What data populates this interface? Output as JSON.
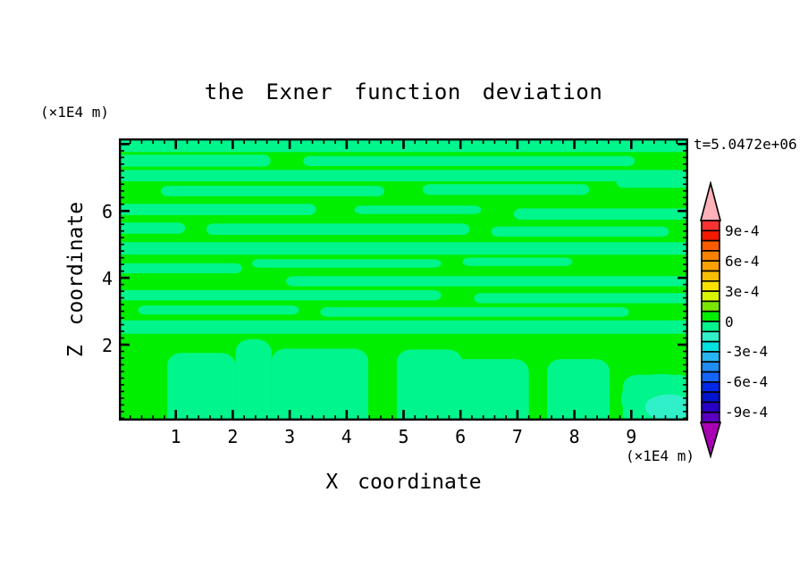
{
  "chart_data": {
    "type": "filled_contour",
    "title": "the Exner function deviation",
    "time_label": "t=5.0472e+06",
    "xlabel": "X coordinate",
    "zlabel": "Z coordinate",
    "x_unit_label": "(×1E4 m)",
    "z_unit_label": "(×1E4 m)",
    "x_range": [
      0,
      10
    ],
    "z_range": [
      -0.27,
      8.17
    ],
    "x_tick_labels": [
      1,
      2,
      3,
      4,
      5,
      6,
      7,
      8,
      9
    ],
    "x_minor_step": 0.2,
    "z_tick_labels": [
      2,
      4,
      6
    ],
    "z_major_marks": [
      2,
      4,
      6,
      8
    ],
    "z_minor_step": 0.2,
    "contour_interval": 0.0001,
    "grid": false,
    "legend_position": "right-colorbar",
    "colors": {
      "pos_green": "#00ee00",
      "neg_green": "#00f58c",
      "min_teal": "#2ff0c8",
      "frame": "#000000"
    },
    "colorbar": {
      "segment_interval": 0.0001,
      "value_top": 0.001,
      "value_bottom": -0.001,
      "segment_colors": [
        "#fa3232",
        "#f51900",
        "#fa5a00",
        "#fa8200",
        "#faa000",
        "#fabe00",
        "#fae100",
        "#d7f500",
        "#78e600",
        "#00ee00",
        "#00f58c",
        "#2ff0c8",
        "#00e1e1",
        "#28b4f0",
        "#1e8cf0",
        "#1464fa",
        "#0028e6",
        "#0014cd",
        "#2800c8",
        "#5a00c0"
      ],
      "top_arrow_color": "#ffb2b8",
      "top_arrow_meaning": "values > 1.0e-3",
      "bottom_arrow_color": "#aa00b4",
      "bottom_arrow_meaning": "values < -1.0e-3",
      "labels": [
        {
          "text": "9e-4",
          "after_segment": 1
        },
        {
          "text": "6e-4",
          "after_segment": 4
        },
        {
          "text": "3e-4",
          "after_segment": 7
        },
        {
          "text": "0",
          "after_segment": 10
        },
        {
          "text": "-3e-4",
          "after_segment": 13
        },
        {
          "text": "-6e-4",
          "after_segment": 16
        },
        {
          "text": "-9e-4",
          "after_segment": 19
        }
      ]
    },
    "field_summary": "Deviation field lies almost entirely within -1e-4..+1e-4: thin wavy horizontal bands alternate between the 0..1e-4 level (green) and -1e-4..0 level (spring green); broad near-zero columns rise from the lower boundary; a closed local minimum reaching the -2e-4 contour (turquoise core) sits near x=9.6, z=0.5.",
    "neg_bands_frac": [
      [
        0.0,
        0.0,
        1.0,
        0.048
      ],
      [
        0.0,
        0.058,
        0.26,
        0.1
      ],
      [
        0.33,
        0.062,
        0.9,
        0.098
      ],
      [
        0.0,
        0.112,
        1.0,
        0.152
      ],
      [
        0.08,
        0.168,
        0.46,
        0.205
      ],
      [
        0.54,
        0.162,
        0.82,
        0.2
      ],
      [
        0.88,
        0.13,
        1.0,
        0.175
      ],
      [
        0.0,
        0.232,
        0.34,
        0.272
      ],
      [
        0.42,
        0.238,
        0.63,
        0.268
      ],
      [
        0.7,
        0.248,
        1.0,
        0.288
      ],
      [
        0.0,
        0.298,
        0.11,
        0.338
      ],
      [
        0.16,
        0.302,
        0.61,
        0.342
      ],
      [
        0.66,
        0.312,
        0.96,
        0.348
      ],
      [
        0.0,
        0.368,
        1.0,
        0.412
      ],
      [
        0.24,
        0.428,
        0.56,
        0.458
      ],
      [
        0.61,
        0.422,
        0.79,
        0.452
      ],
      [
        0.0,
        0.442,
        0.21,
        0.478
      ],
      [
        0.3,
        0.488,
        1.0,
        0.524
      ],
      [
        0.0,
        0.538,
        0.56,
        0.574
      ],
      [
        0.63,
        0.548,
        1.0,
        0.584
      ],
      [
        0.04,
        0.592,
        0.31,
        0.624
      ],
      [
        0.36,
        0.598,
        0.89,
        0.632
      ],
      [
        0.0,
        0.645,
        1.0,
        0.692
      ]
    ],
    "plumes_frac": [
      [
        0.085,
        0.76,
        0.205,
        1.05
      ],
      [
        0.205,
        0.712,
        0.268,
        1.05
      ],
      [
        0.268,
        0.745,
        0.438,
        1.05
      ],
      [
        0.488,
        0.748,
        0.603,
        1.05
      ],
      [
        0.545,
        0.782,
        0.72,
        1.05
      ],
      [
        0.752,
        0.782,
        0.862,
        1.05
      ],
      [
        0.885,
        0.838,
        1.01,
        1.05
      ]
    ],
    "min_blob_frac": {
      "outer": [
        0.953,
        0.924,
        0.071,
        0.089
      ],
      "core": [
        0.966,
        0.953,
        0.042,
        0.046
      ]
    }
  }
}
